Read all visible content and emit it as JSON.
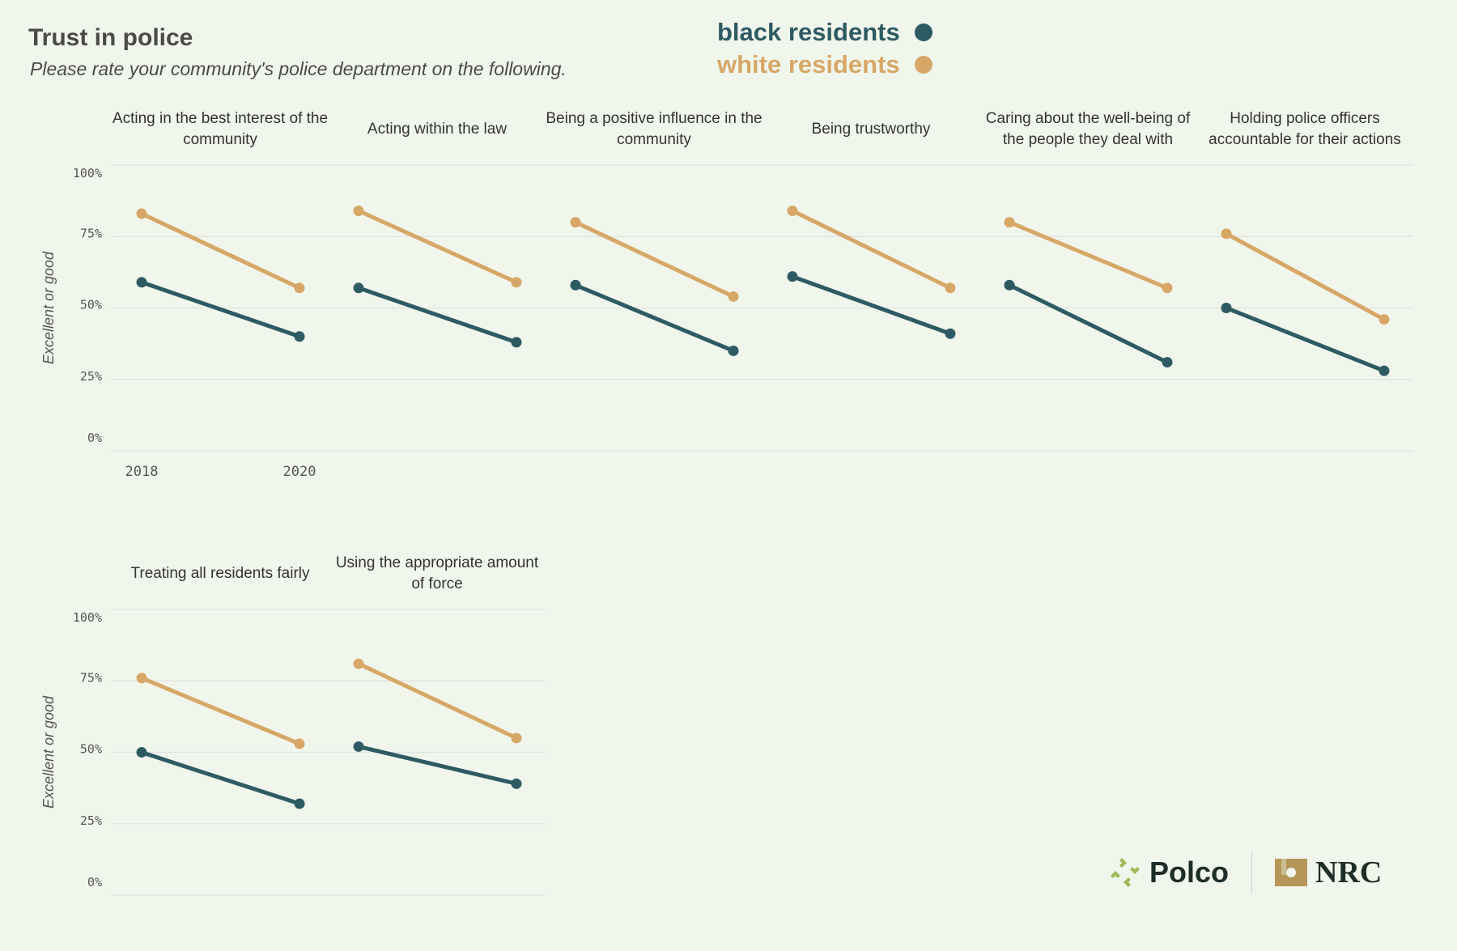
{
  "title": "Trust in police",
  "subtitle": "Please rate your community's police department on the following.",
  "legend": [
    {
      "label": "black residents",
      "color": "#2e5a63"
    },
    {
      "label": "white residents",
      "color": "#d6a766"
    }
  ],
  "logos": {
    "polco": "Polco",
    "nrc": "NRC"
  },
  "chart_data": {
    "type": "line",
    "ylabel": "Excellent or good",
    "ylim": [
      0,
      100
    ],
    "yticks": [
      "0%",
      "25%",
      "50%",
      "75%",
      "100%"
    ],
    "x": [
      "2018",
      "2020"
    ],
    "panels": [
      {
        "title": "Acting in the best interest of the community",
        "black": [
          59,
          40
        ],
        "white": [
          83,
          57
        ]
      },
      {
        "title": "Acting within the law",
        "black": [
          57,
          38
        ],
        "white": [
          84,
          59
        ]
      },
      {
        "title": "Being a positive influence in the community",
        "black": [
          58,
          35
        ],
        "white": [
          80,
          54
        ]
      },
      {
        "title": "Being trustworthy",
        "black": [
          61,
          41
        ],
        "white": [
          84,
          57
        ]
      },
      {
        "title": "Caring about the well-being of the people they deal with",
        "black": [
          58,
          31
        ],
        "white": [
          80,
          57
        ]
      },
      {
        "title": "Holding police officers accountable for their actions",
        "black": [
          50,
          28
        ],
        "white": [
          76,
          46
        ]
      },
      {
        "title": "Treating all residents fairly",
        "black": [
          50,
          32
        ],
        "white": [
          76,
          53
        ]
      },
      {
        "title": "Using the appropriate amount of force",
        "black": [
          52,
          39
        ],
        "white": [
          81,
          55
        ]
      }
    ]
  }
}
